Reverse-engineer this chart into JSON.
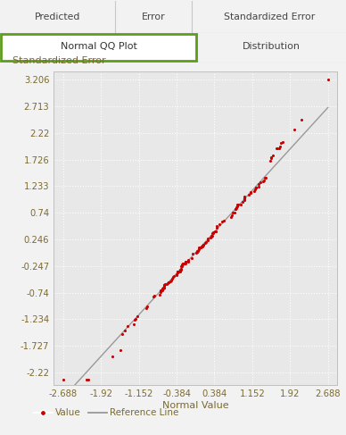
{
  "title_tab1": "Predicted",
  "title_tab2": "Error",
  "title_tab3": "Standardized Error",
  "title_tab_active": "Normal QQ Plot",
  "title_tab_inactive": "Distribution",
  "ylabel": "Standardized Error",
  "xlabel": "Normal Value",
  "legend_value": "Value",
  "legend_refline": "Reference Line",
  "yticks": [
    3.206,
    2.713,
    2.22,
    1.726,
    1.233,
    0.74,
    0.246,
    -0.247,
    -0.74,
    -1.234,
    -1.727,
    -2.22
  ],
  "xticks": [
    -2.688,
    -1.92,
    -1.152,
    -0.384,
    0.384,
    1.152,
    1.92,
    2.688
  ],
  "xlim": [
    -2.88,
    2.88
  ],
  "ylim": [
    -2.45,
    3.35
  ],
  "dot_color": "#cc0000",
  "refline_color": "#999999",
  "background_color": "#f2f2f2",
  "plot_bg_color": "#e8e8e8",
  "grid_color": "#ffffff",
  "tab_bg": "#ebebeb",
  "tab_active_border": "#5c9e1a",
  "tab_active_bg": "#ffffff",
  "tick_color": "#7b6a2e",
  "label_color": "#7b6a2e",
  "n_points": 150,
  "tab1_splits": [
    0.333,
    0.555
  ],
  "tab2_split": 0.57
}
